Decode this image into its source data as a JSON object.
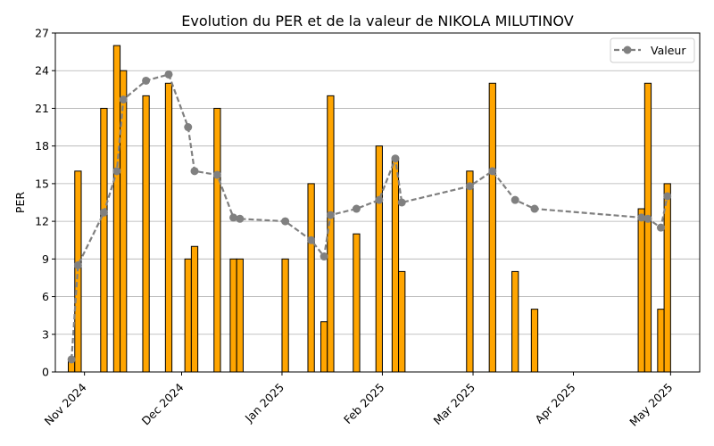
{
  "chart_data": {
    "type": "bar+line",
    "title": "Evolution du PER et de la valeur de NIKOLA MILUTINOV",
    "xlabel": "",
    "ylabel": "PER",
    "ylim": [
      0,
      27
    ],
    "xlim": [
      "2024-10-23",
      "2025-05-10"
    ],
    "yticks": [
      0,
      3,
      6,
      9,
      12,
      15,
      18,
      21,
      24,
      27
    ],
    "xticks": [
      {
        "date": "2024-11-01",
        "label": "Nov 2024"
      },
      {
        "date": "2024-12-01",
        "label": "Dec 2024"
      },
      {
        "date": "2025-01-01",
        "label": "Jan 2025"
      },
      {
        "date": "2025-02-01",
        "label": "Feb 2025"
      },
      {
        "date": "2025-03-01",
        "label": "Mar 2025"
      },
      {
        "date": "2025-04-01",
        "label": "Apr 2025"
      },
      {
        "date": "2025-05-01",
        "label": "May 2025"
      }
    ],
    "grid": "horizontal",
    "legend_position": "top-right",
    "bar_color": "#ffa500",
    "bar_edge_color": "#000000",
    "line_color": "#808080",
    "bar_width_days": 2,
    "bars": [
      {
        "date": "2024-10-28",
        "value": 1
      },
      {
        "date": "2024-10-30",
        "value": 16
      },
      {
        "date": "2024-11-07",
        "value": 21
      },
      {
        "date": "2024-11-11",
        "value": 26
      },
      {
        "date": "2024-11-13",
        "value": 24
      },
      {
        "date": "2024-11-20",
        "value": 22
      },
      {
        "date": "2024-11-27",
        "value": 23
      },
      {
        "date": "2024-12-03",
        "value": 9
      },
      {
        "date": "2024-12-05",
        "value": 10
      },
      {
        "date": "2024-12-12",
        "value": 21
      },
      {
        "date": "2024-12-17",
        "value": 9
      },
      {
        "date": "2024-12-19",
        "value": 9
      },
      {
        "date": "2025-01-02",
        "value": 9
      },
      {
        "date": "2025-01-10",
        "value": 15
      },
      {
        "date": "2025-01-14",
        "value": 4
      },
      {
        "date": "2025-01-16",
        "value": 22
      },
      {
        "date": "2025-01-24",
        "value": 11
      },
      {
        "date": "2025-01-31",
        "value": 18
      },
      {
        "date": "2025-02-05",
        "value": 17
      },
      {
        "date": "2025-02-07",
        "value": 8
      },
      {
        "date": "2025-02-28",
        "value": 16
      },
      {
        "date": "2025-03-07",
        "value": 23
      },
      {
        "date": "2025-03-14",
        "value": 8
      },
      {
        "date": "2025-03-20",
        "value": 5
      },
      {
        "date": "2025-04-22",
        "value": 13
      },
      {
        "date": "2025-04-24",
        "value": 23
      },
      {
        "date": "2025-04-28",
        "value": 5
      },
      {
        "date": "2025-04-30",
        "value": 15
      }
    ],
    "series": [
      {
        "name": "Valeur",
        "points": [
          {
            "date": "2024-10-28",
            "value": 1.0
          },
          {
            "date": "2024-10-30",
            "value": 8.5
          },
          {
            "date": "2024-11-07",
            "value": 12.7
          },
          {
            "date": "2024-11-11",
            "value": 16.0
          },
          {
            "date": "2024-11-13",
            "value": 21.7
          },
          {
            "date": "2024-11-20",
            "value": 23.2
          },
          {
            "date": "2024-11-27",
            "value": 23.7
          },
          {
            "date": "2024-12-03",
            "value": 19.5
          },
          {
            "date": "2024-12-05",
            "value": 16.0
          },
          {
            "date": "2024-12-12",
            "value": 15.7
          },
          {
            "date": "2024-12-17",
            "value": 12.3
          },
          {
            "date": "2024-12-19",
            "value": 12.2
          },
          {
            "date": "2025-01-02",
            "value": 12.0
          },
          {
            "date": "2025-01-10",
            "value": 10.5
          },
          {
            "date": "2025-01-14",
            "value": 9.2
          },
          {
            "date": "2025-01-16",
            "value": 12.5
          },
          {
            "date": "2025-01-24",
            "value": 13.0
          },
          {
            "date": "2025-01-31",
            "value": 13.7
          },
          {
            "date": "2025-02-05",
            "value": 17.0
          },
          {
            "date": "2025-02-07",
            "value": 13.5
          },
          {
            "date": "2025-02-28",
            "value": 14.8
          },
          {
            "date": "2025-03-07",
            "value": 16.0
          },
          {
            "date": "2025-03-14",
            "value": 13.7
          },
          {
            "date": "2025-03-20",
            "value": 13.0
          },
          {
            "date": "2025-04-22",
            "value": 12.3
          },
          {
            "date": "2025-04-24",
            "value": 12.2
          },
          {
            "date": "2025-04-28",
            "value": 11.5
          },
          {
            "date": "2025-04-30",
            "value": 14.0
          }
        ]
      }
    ]
  }
}
